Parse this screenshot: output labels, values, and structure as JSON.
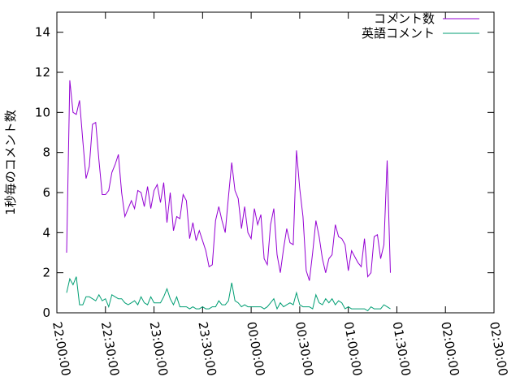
{
  "chart_data": {
    "type": "line",
    "title": "",
    "xlabel": "",
    "ylabel": "1秒毎のコメント数",
    "xlim": [
      "22:00:00",
      "02:30:00"
    ],
    "ylim": [
      0,
      15
    ],
    "x_ticks": [
      "22:00:00",
      "22:30:00",
      "23:00:00",
      "23:30:00",
      "00:00:00",
      "00:30:00",
      "01:00:00",
      "01:30:00",
      "02:00:00",
      "02:30:00"
    ],
    "y_ticks": [
      0,
      2,
      4,
      6,
      8,
      10,
      12,
      14
    ],
    "legend_position": "top-right",
    "grid": false,
    "x_interval": "2 minutes",
    "x_start": "22:06:00",
    "series": [
      {
        "name": "コメント数",
        "color": "#9400d3",
        "values": [
          3.0,
          11.6,
          10.0,
          9.9,
          10.6,
          8.6,
          6.7,
          7.3,
          9.4,
          9.5,
          7.6,
          5.9,
          5.9,
          6.1,
          7.0,
          7.4,
          7.9,
          6.0,
          4.8,
          5.2,
          5.6,
          5.2,
          6.1,
          6.0,
          5.3,
          6.3,
          5.2,
          6.1,
          6.4,
          5.5,
          6.5,
          4.5,
          6.0,
          4.1,
          4.8,
          4.7,
          5.9,
          5.6,
          3.7,
          4.5,
          3.6,
          4.1,
          3.6,
          3.1,
          2.3,
          2.4,
          4.6,
          5.3,
          4.6,
          4.0,
          5.8,
          7.5,
          6.1,
          5.7,
          4.2,
          5.3,
          4.0,
          3.7,
          5.2,
          4.4,
          4.9,
          2.7,
          2.4,
          4.4,
          5.2,
          2.9,
          2.0,
          3.2,
          4.2,
          3.5,
          3.4,
          8.1,
          6.2,
          4.8,
          2.1,
          1.6,
          3.0,
          4.6,
          3.8,
          2.7,
          2.0,
          2.7,
          2.9,
          4.4,
          3.8,
          3.7,
          3.4,
          2.1,
          3.1,
          2.8,
          2.5,
          2.3,
          3.7,
          1.8,
          2.0,
          3.8,
          3.9,
          2.7,
          3.4,
          7.6,
          2.0
        ]
      },
      {
        "name": "英語コメント",
        "color": "#009e73",
        "values": [
          1.0,
          1.7,
          1.4,
          1.8,
          0.4,
          0.4,
          0.8,
          0.8,
          0.7,
          0.6,
          0.9,
          0.6,
          0.7,
          0.3,
          0.9,
          0.8,
          0.7,
          0.7,
          0.5,
          0.4,
          0.5,
          0.6,
          0.4,
          0.8,
          0.5,
          0.4,
          0.8,
          0.5,
          0.5,
          0.5,
          0.8,
          1.2,
          0.7,
          0.4,
          0.8,
          0.3,
          0.3,
          0.3,
          0.2,
          0.3,
          0.2,
          0.2,
          0.3,
          0.2,
          0.2,
          0.3,
          0.3,
          0.6,
          0.4,
          0.4,
          0.6,
          1.5,
          0.6,
          0.5,
          0.3,
          0.4,
          0.3,
          0.3,
          0.3,
          0.3,
          0.3,
          0.2,
          0.3,
          0.5,
          0.7,
          0.2,
          0.5,
          0.3,
          0.4,
          0.5,
          0.4,
          1.0,
          0.4,
          0.3,
          0.3,
          0.3,
          0.2,
          0.9,
          0.5,
          0.4,
          0.7,
          0.5,
          0.7,
          0.4,
          0.6,
          0.5,
          0.2,
          0.3,
          0.2,
          0.2,
          0.2,
          0.2,
          0.2,
          0.1,
          0.3,
          0.2,
          0.2,
          0.2,
          0.4,
          0.3,
          0.2
        ]
      }
    ]
  }
}
